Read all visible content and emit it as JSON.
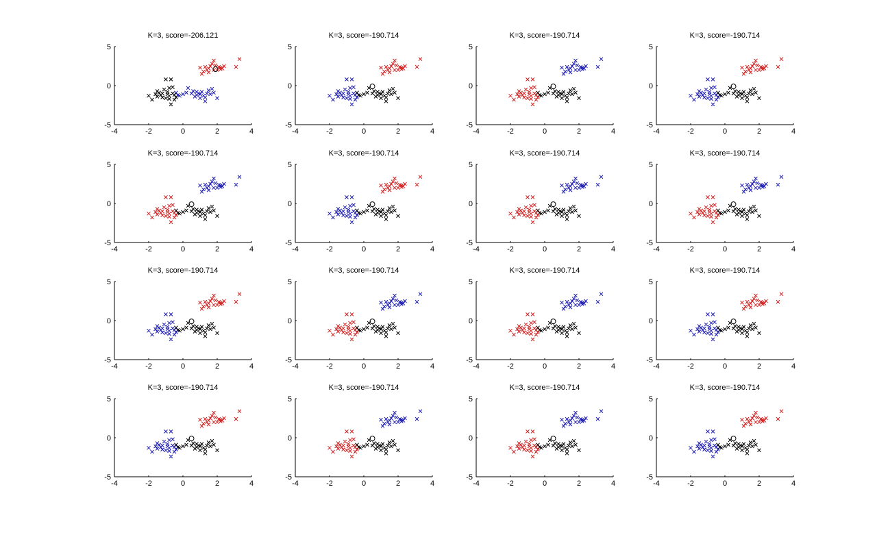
{
  "chart_data": {
    "type": "scatter",
    "layout": {
      "rows": 4,
      "cols": 4
    },
    "xlim": [
      -4,
      4
    ],
    "ylim": [
      -5,
      5
    ],
    "xticks": [
      -4,
      -2,
      0,
      2,
      4
    ],
    "yticks": [
      -5,
      0,
      5
    ],
    "grid": false,
    "marker": "x",
    "center_marker": "o",
    "colors": {
      "red": "#d42020",
      "blue": "#1c1cb4",
      "black": "#000000"
    },
    "cluster_points": {
      "A": [
        [
          3.3,
          3.4
        ],
        [
          3.1,
          2.4
        ],
        [
          2.4,
          2.5
        ],
        [
          2.3,
          2.2
        ],
        [
          2.2,
          2.1
        ],
        [
          2.1,
          2.4
        ],
        [
          2.0,
          2.0
        ],
        [
          1.9,
          2.6
        ],
        [
          1.8,
          3.2
        ],
        [
          1.7,
          2.8
        ],
        [
          1.6,
          2.5
        ],
        [
          1.5,
          2.2
        ],
        [
          1.4,
          2.0
        ],
        [
          1.3,
          2.4
        ],
        [
          1.2,
          1.8
        ],
        [
          1.1,
          1.5
        ],
        [
          1.0,
          2.3
        ],
        [
          1.8,
          2.0
        ],
        [
          2.2,
          2.3
        ],
        [
          1.5,
          1.7
        ]
      ],
      "B": [
        [
          0.3,
          -0.3
        ],
        [
          0.5,
          -1.0
        ],
        [
          0.6,
          -0.7
        ],
        [
          0.7,
          -1.4
        ],
        [
          0.8,
          -1.2
        ],
        [
          0.8,
          -0.8
        ],
        [
          0.9,
          -1.0
        ],
        [
          1.0,
          -1.6
        ],
        [
          1.0,
          -1.1
        ],
        [
          1.1,
          -0.8
        ],
        [
          1.2,
          -1.3
        ],
        [
          1.3,
          -1.5
        ],
        [
          1.3,
          -2.0
        ],
        [
          1.4,
          -1.0
        ],
        [
          1.5,
          -0.6
        ],
        [
          1.6,
          -1.1
        ],
        [
          1.7,
          -0.4
        ],
        [
          1.8,
          -0.9
        ],
        [
          2.0,
          -1.6
        ],
        [
          0.2,
          -0.9
        ],
        [
          0.0,
          -1.1
        ],
        [
          -0.2,
          -1.3
        ],
        [
          -0.3,
          -1.2
        ],
        [
          -0.4,
          -0.9
        ]
      ],
      "C": [
        [
          -2.0,
          -1.3
        ],
        [
          -1.8,
          -1.8
        ],
        [
          -1.6,
          -1.1
        ],
        [
          -1.5,
          -1.4
        ],
        [
          -1.4,
          -0.9
        ],
        [
          -1.3,
          -1.2
        ],
        [
          -1.2,
          -1.0
        ],
        [
          -1.1,
          -0.5
        ],
        [
          -1.0,
          0.8
        ],
        [
          -1.0,
          -1.6
        ],
        [
          -0.9,
          -1.1
        ],
        [
          -0.8,
          -0.3
        ],
        [
          -0.8,
          -1.3
        ],
        [
          -0.7,
          0.8
        ],
        [
          -0.7,
          -2.4
        ],
        [
          -0.6,
          -1.0
        ],
        [
          -0.6,
          -0.2
        ],
        [
          -0.5,
          -1.8
        ],
        [
          -0.5,
          -1.2
        ],
        [
          -0.9,
          -0.8
        ],
        [
          -1.2,
          -1.5
        ],
        [
          -0.4,
          -1.5
        ],
        [
          -1.5,
          -0.7
        ],
        [
          -0.8,
          -1.7
        ]
      ]
    },
    "subplots": [
      {
        "title": "K=3, score=-206.121",
        "center": [
          1.9,
          2.1
        ],
        "colors": {
          "A": "red",
          "B": "blue",
          "C": "black"
        }
      },
      {
        "title": "K=3, score=-190.714",
        "center": [
          0.5,
          -0.1
        ],
        "colors": {
          "A": "red",
          "B": "black",
          "C": "blue"
        }
      },
      {
        "title": "K=3, score=-190.714",
        "center": [
          0.5,
          -0.1
        ],
        "colors": {
          "A": "blue",
          "B": "black",
          "C": "red"
        }
      },
      {
        "title": "K=3, score=-190.714",
        "center": [
          0.5,
          -0.1
        ],
        "colors": {
          "A": "red",
          "B": "black",
          "C": "blue"
        }
      },
      {
        "title": "K=3, score=-190.714",
        "center": [
          0.5,
          -0.1
        ],
        "colors": {
          "A": "blue",
          "B": "black",
          "C": "red"
        }
      },
      {
        "title": "K=3, score=-190.714",
        "center": [
          0.5,
          -0.1
        ],
        "colors": {
          "A": "red",
          "B": "black",
          "C": "blue"
        }
      },
      {
        "title": "K=3, score=-190.714",
        "center": [
          0.5,
          -0.1
        ],
        "colors": {
          "A": "blue",
          "B": "black",
          "C": "red"
        }
      },
      {
        "title": "K=3, score=-190.714",
        "center": [
          0.5,
          -0.1
        ],
        "colors": {
          "A": "blue",
          "B": "black",
          "C": "red"
        }
      },
      {
        "title": "K=3, score=-190.714",
        "center": [
          0.5,
          -0.1
        ],
        "colors": {
          "A": "red",
          "B": "black",
          "C": "blue"
        }
      },
      {
        "title": "K=3, score=-190.714",
        "center": [
          0.5,
          -0.1
        ],
        "colors": {
          "A": "blue",
          "B": "black",
          "C": "red"
        }
      },
      {
        "title": "K=3, score=-190.714",
        "center": [
          0.5,
          -0.1
        ],
        "colors": {
          "A": "blue",
          "B": "black",
          "C": "red"
        }
      },
      {
        "title": "K=3, score=-190.714",
        "center": [
          0.5,
          -0.1
        ],
        "colors": {
          "A": "red",
          "B": "black",
          "C": "blue"
        }
      },
      {
        "title": "K=3, score=-190.714",
        "center": [
          0.5,
          -0.1
        ],
        "colors": {
          "A": "red",
          "B": "black",
          "C": "blue"
        }
      },
      {
        "title": "K=3, score=-190.714",
        "center": [
          0.5,
          -0.1
        ],
        "colors": {
          "A": "blue",
          "B": "black",
          "C": "red"
        }
      },
      {
        "title": "K=3, score=-190.714",
        "center": [
          0.5,
          -0.1
        ],
        "colors": {
          "A": "blue",
          "B": "black",
          "C": "red"
        }
      },
      {
        "title": "K=3, score=-190.714",
        "center": [
          0.5,
          -0.1
        ],
        "colors": {
          "A": "red",
          "B": "black",
          "C": "blue"
        }
      }
    ]
  }
}
